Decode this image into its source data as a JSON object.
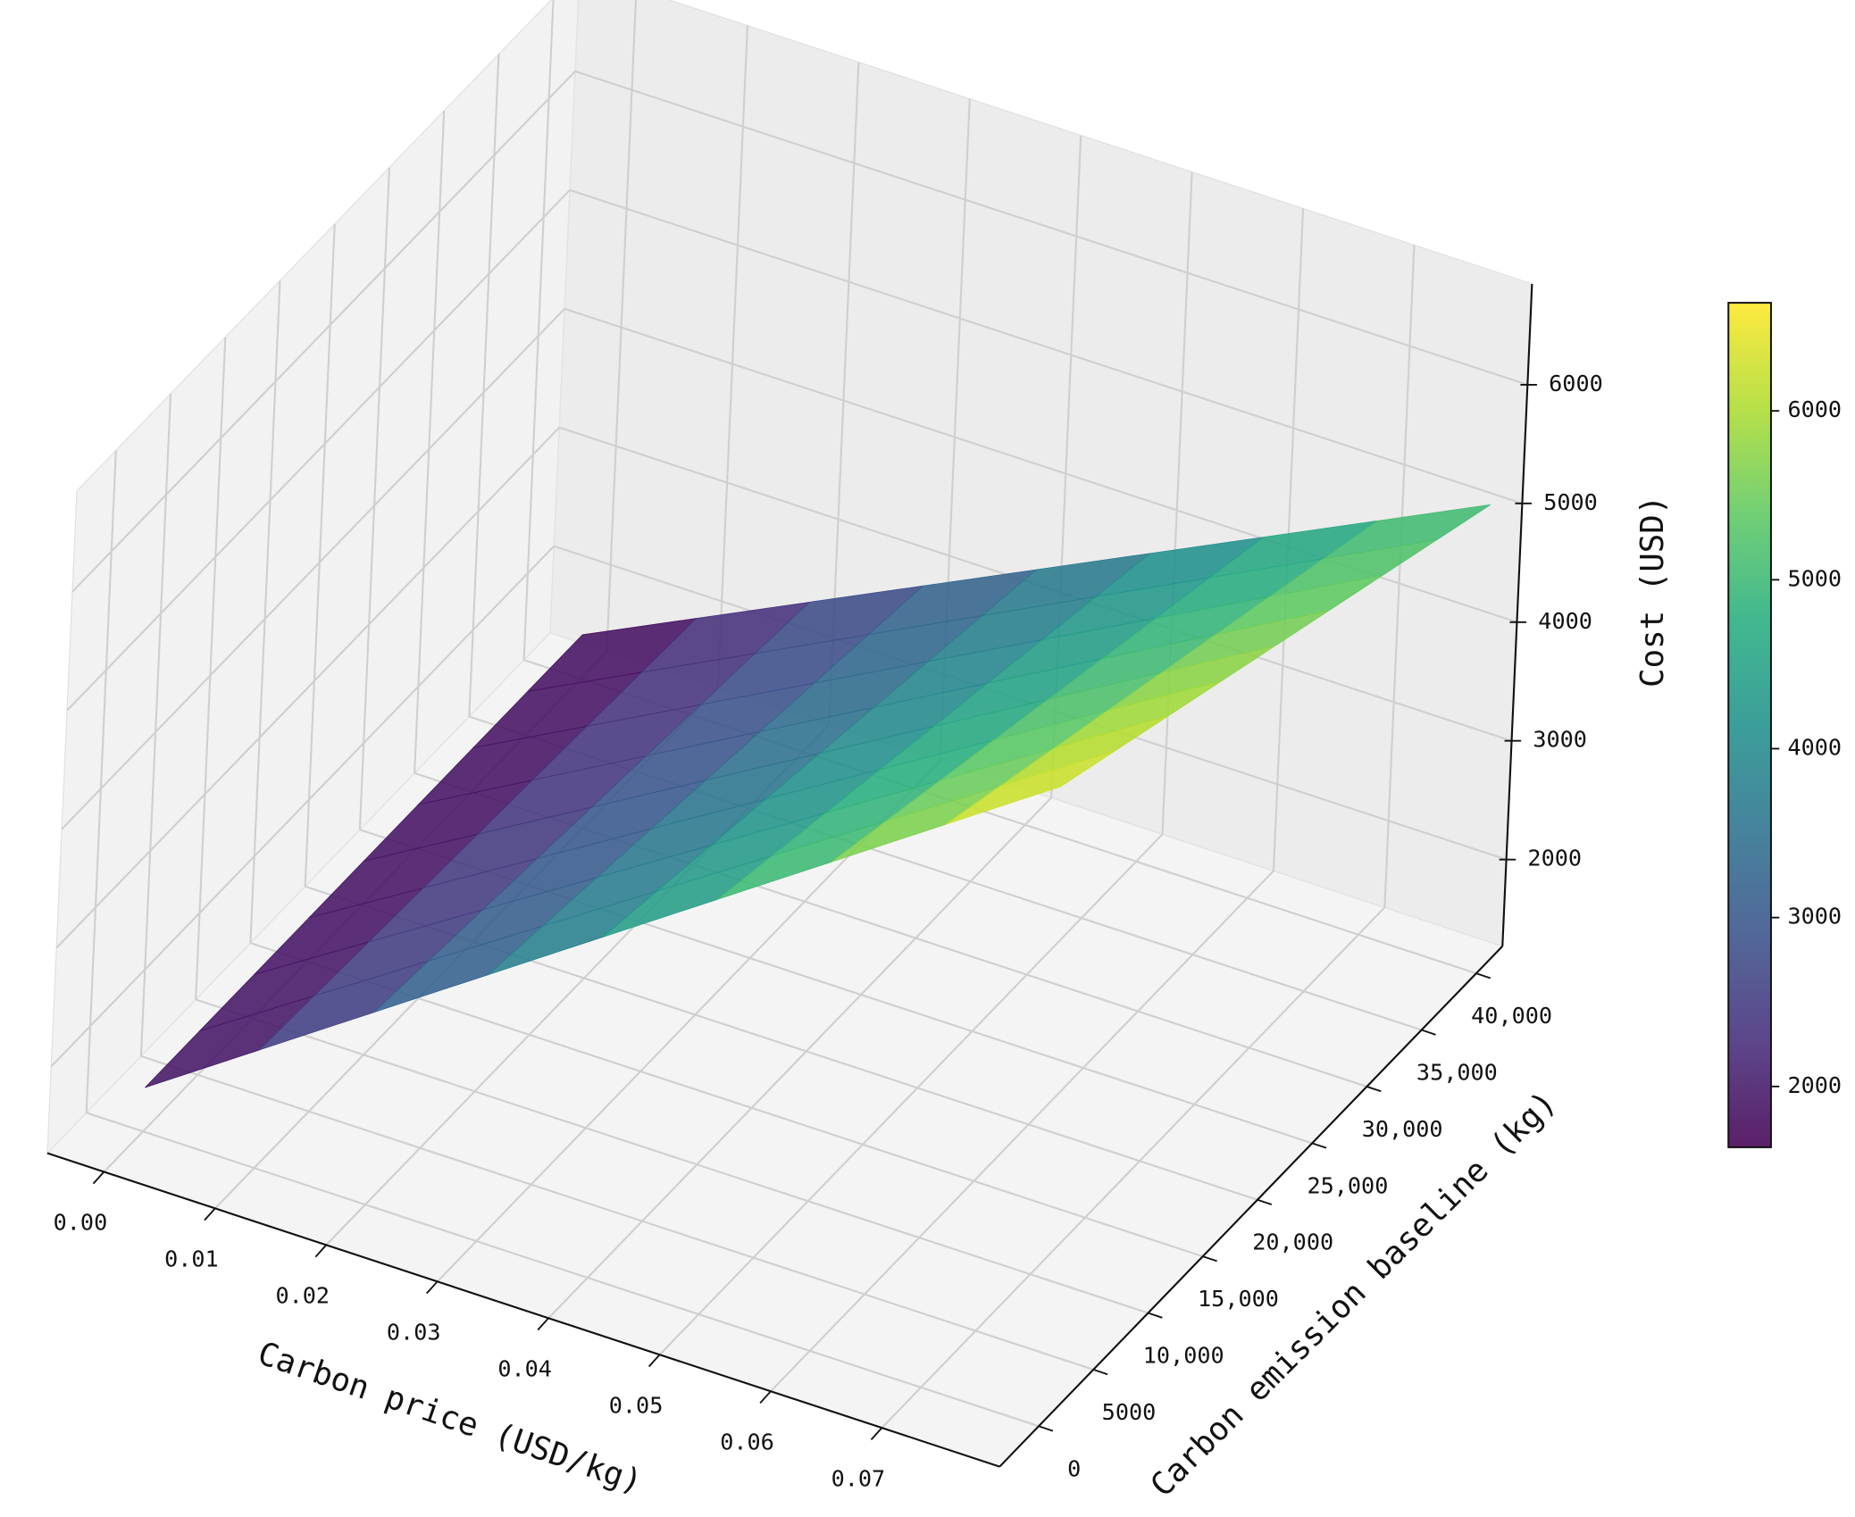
{
  "chart_data": {
    "type": "surface",
    "x_label": "Carbon price (USD/kg)",
    "y_label": "Carbon emission baseline (kg)",
    "z_label": "Cost (USD)",
    "x": [
      0,
      0.01,
      0.02,
      0.03,
      0.04,
      0.05,
      0.06,
      0.07,
      0.08
    ],
    "y": [
      0,
      5000,
      10000,
      15000,
      20000,
      25000,
      30000,
      35000,
      40000
    ],
    "z": [
      [
        1640,
        2265,
        2890,
        3515,
        4140,
        4765,
        5390,
        6015,
        6640
      ],
      [
        1640,
        2243,
        2845,
        3448,
        4050,
        4653,
        5255,
        5858,
        6460
      ],
      [
        1640,
        2220,
        2800,
        3380,
        3960,
        4540,
        5120,
        5700,
        6280
      ],
      [
        1640,
        2198,
        2755,
        3313,
        3870,
        4428,
        4985,
        5543,
        6100
      ],
      [
        1640,
        2175,
        2710,
        3245,
        3780,
        4315,
        4850,
        5385,
        5920
      ],
      [
        1640,
        2153,
        2665,
        3178,
        3690,
        4203,
        4715,
        5228,
        5740
      ],
      [
        1640,
        2130,
        2620,
        3110,
        3600,
        4090,
        4580,
        5070,
        5560
      ],
      [
        1640,
        2108,
        2575,
        3043,
        3510,
        3978,
        4445,
        4913,
        5380
      ],
      [
        1640,
        2085,
        2530,
        2975,
        3420,
        3865,
        4310,
        4755,
        5200
      ]
    ],
    "xlim": [
      -0.0051,
      0.0806
    ],
    "ylim": [
      -3570,
      42400
    ],
    "zlim": [
      1270,
      6850
    ],
    "xticks": [
      {
        "value": 0,
        "label": "0.00"
      },
      0.01,
      0.02,
      0.03,
      0.04,
      0.05,
      0.06,
      0.07
    ],
    "yticks": [
      0,
      5000,
      {
        "value": 10000,
        "label": "10,000"
      },
      {
        "value": 15000,
        "label": "15,000"
      },
      {
        "value": 20000,
        "label": "20,000"
      },
      {
        "value": 25000,
        "label": "25,000"
      },
      {
        "value": 30000,
        "label": "30,000"
      },
      {
        "value": 35000,
        "label": "35,000"
      },
      {
        "value": 40000,
        "label": "40,000"
      }
    ],
    "zticks": [
      2000,
      3000,
      4000,
      5000,
      6000
    ],
    "colormap": "viridis",
    "colorbar": {
      "lim": [
        1640,
        6640
      ],
      "ticks": [
        2000,
        3000,
        4000,
        5000,
        6000
      ]
    },
    "grid": true
  }
}
